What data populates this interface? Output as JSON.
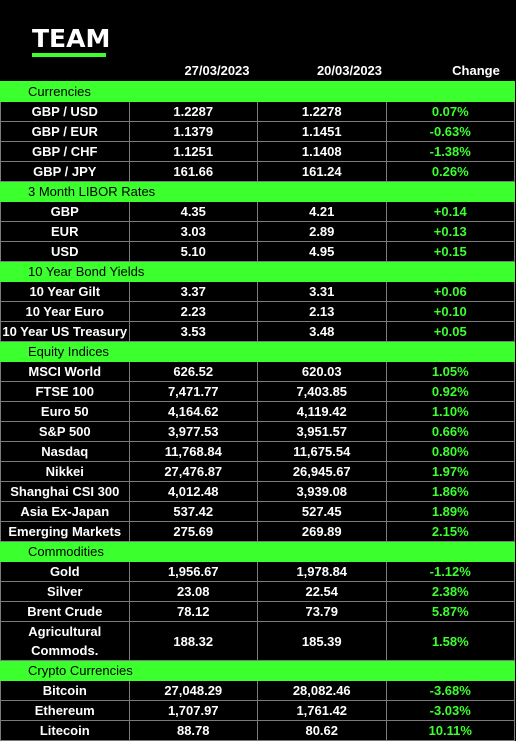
{
  "brand": {
    "logo_text": "TEAM",
    "accent_color": "#3cff2e"
  },
  "columns": {
    "date1": "27/03/2023",
    "date2": "20/03/2023",
    "change": "Change"
  },
  "sections": [
    {
      "title": "Currencies",
      "rows": [
        {
          "name": "GBP / USD",
          "v1": "1.2287",
          "v2": "1.2278",
          "change": "0.07%"
        },
        {
          "name": "GBP / EUR",
          "v1": "1.1379",
          "v2": "1.1451",
          "change": "-0.63%"
        },
        {
          "name": "GBP / CHF",
          "v1": "1.1251",
          "v2": "1.1408",
          "change": "-1.38%"
        },
        {
          "name": "GBP / JPY",
          "v1": "161.66",
          "v2": "161.24",
          "change": "0.26%"
        }
      ]
    },
    {
      "title": "3 Month LIBOR Rates",
      "rows": [
        {
          "name": "GBP",
          "v1": "4.35",
          "v2": "4.21",
          "change": "+0.14"
        },
        {
          "name": "EUR",
          "v1": "3.03",
          "v2": "2.89",
          "change": "+0.13"
        },
        {
          "name": "USD",
          "v1": "5.10",
          "v2": "4.95",
          "change": "+0.15"
        }
      ]
    },
    {
      "title": "10 Year Bond Yields",
      "rows": [
        {
          "name": "10 Year Gilt",
          "v1": "3.37",
          "v2": "3.31",
          "change": "+0.06"
        },
        {
          "name": "10 Year Euro",
          "v1": "2.23",
          "v2": "2.13",
          "change": "+0.10"
        },
        {
          "name": "10 Year US Treasury",
          "v1": "3.53",
          "v2": "3.48",
          "change": "+0.05"
        }
      ]
    },
    {
      "title": "Equity Indices",
      "rows": [
        {
          "name": "MSCI World",
          "v1": "626.52",
          "v2": "620.03",
          "change": "1.05%"
        },
        {
          "name": "FTSE 100",
          "v1": "7,471.77",
          "v2": "7,403.85",
          "change": "0.92%"
        },
        {
          "name": "Euro 50",
          "v1": "4,164.62",
          "v2": "4,119.42",
          "change": "1.10%"
        },
        {
          "name": "S&P 500",
          "v1": "3,977.53",
          "v2": "3,951.57",
          "change": "0.66%"
        },
        {
          "name": "Nasdaq",
          "v1": "11,768.84",
          "v2": "11,675.54",
          "change": "0.80%"
        },
        {
          "name": "Nikkei",
          "v1": "27,476.87",
          "v2": "26,945.67",
          "change": "1.97%"
        },
        {
          "name": "Shanghai CSI 300",
          "v1": "4,012.48",
          "v2": "3,939.08",
          "change": "1.86%"
        },
        {
          "name": "Asia Ex-Japan",
          "v1": "537.42",
          "v2": "527.45",
          "change": "1.89%"
        },
        {
          "name": "Emerging Markets",
          "v1": "275.69",
          "v2": "269.89",
          "change": "2.15%"
        }
      ]
    },
    {
      "title": "Commodities",
      "rows": [
        {
          "name": "Gold",
          "v1": "1,956.67",
          "v2": "1,978.84",
          "change": "-1.12%"
        },
        {
          "name": "Silver",
          "v1": "23.08",
          "v2": "22.54",
          "change": "2.38%"
        },
        {
          "name": "Brent Crude",
          "v1": "78.12",
          "v2": "73.79",
          "change": "5.87%"
        },
        {
          "name": "Agricultural Commods.",
          "v1": "188.32",
          "v2": "185.39",
          "change": "1.58%"
        }
      ]
    },
    {
      "title": "Crypto Currencies",
      "rows": [
        {
          "name": "Bitcoin",
          "v1": "27,048.29",
          "v2": "28,082.46",
          "change": "-3.68%"
        },
        {
          "name": "Ethereum",
          "v1": "1,707.97",
          "v2": "1,761.42",
          "change": "-3.03%"
        },
        {
          "name": "Litecoin",
          "v1": "88.78",
          "v2": "80.62",
          "change": "10.11%"
        }
      ]
    }
  ]
}
